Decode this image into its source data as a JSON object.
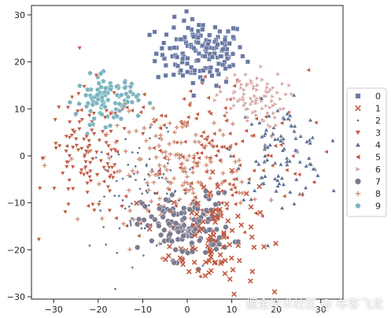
{
  "chart_data": {
    "type": "scatter",
    "title": "",
    "xlabel": "",
    "ylabel": "",
    "xlim": [
      -35,
      35
    ],
    "ylim": [
      -30.5,
      32
    ],
    "xticks": [
      -30,
      -20,
      -10,
      0,
      10,
      20,
      30
    ],
    "yticks": [
      -30,
      -20,
      -10,
      0,
      10,
      20,
      30
    ],
    "grid": false,
    "legend_placement": "right, outside plot",
    "series": [
      {
        "name": "0",
        "marker": "square",
        "color": "#6a7aa6",
        "clusters": [
          {
            "cx": 3,
            "cy": 22,
            "sx": 5,
            "sy": 3.5,
            "n": 150
          }
        ]
      },
      {
        "name": "1",
        "marker": "x",
        "color": "#c0573f",
        "clusters": [
          {
            "cx": 6,
            "cy": -17,
            "sx": 5,
            "sy": 6,
            "n": 110
          }
        ]
      },
      {
        "name": "2",
        "marker": "dot",
        "color": "#5a6f93",
        "clusters": [
          {
            "cx": -10,
            "cy": -8,
            "sx": 6,
            "sy": 6,
            "n": 90
          }
        ]
      },
      {
        "name": "3",
        "marker": "triangle-down",
        "color": "#c0573f",
        "clusters": [
          {
            "cx": -22,
            "cy": 0,
            "sx": 5,
            "sy": 7,
            "n": 120
          }
        ]
      },
      {
        "name": "4",
        "marker": "triangle-up",
        "color": "#5a6f93",
        "clusters": [
          {
            "cx": 21,
            "cy": 1,
            "sx": 5,
            "sy": 5,
            "n": 100
          }
        ]
      },
      {
        "name": "5",
        "marker": "triangle-left",
        "color": "#c0573f",
        "clusters": [
          {
            "cx": 5,
            "cy": 0,
            "sx": 11,
            "sy": 9,
            "n": 160
          }
        ]
      },
      {
        "name": "6",
        "marker": "triangle-right",
        "color": "#d7a8a3",
        "clusters": [
          {
            "cx": 14,
            "cy": 12,
            "sx": 4,
            "sy": 3,
            "n": 90
          }
        ]
      },
      {
        "name": "7",
        "marker": "circle",
        "color": "#7b7b8f",
        "clusters": [
          {
            "cx": 0,
            "cy": -15,
            "sx": 5,
            "sy": 3.5,
            "n": 130
          }
        ]
      },
      {
        "name": "8",
        "marker": "plus",
        "color": "#d08d78",
        "clusters": [
          {
            "cx": -2,
            "cy": -3,
            "sx": 8,
            "sy": 6,
            "n": 150
          }
        ]
      },
      {
        "name": "9",
        "marker": "pentagon",
        "color": "#79b4bf",
        "clusters": [
          {
            "cx": -18,
            "cy": 12,
            "sx": 3.5,
            "sy": 2.5,
            "n": 100
          }
        ]
      }
    ]
  },
  "watermark": "掘金技术社区 @ 布客飞龙"
}
